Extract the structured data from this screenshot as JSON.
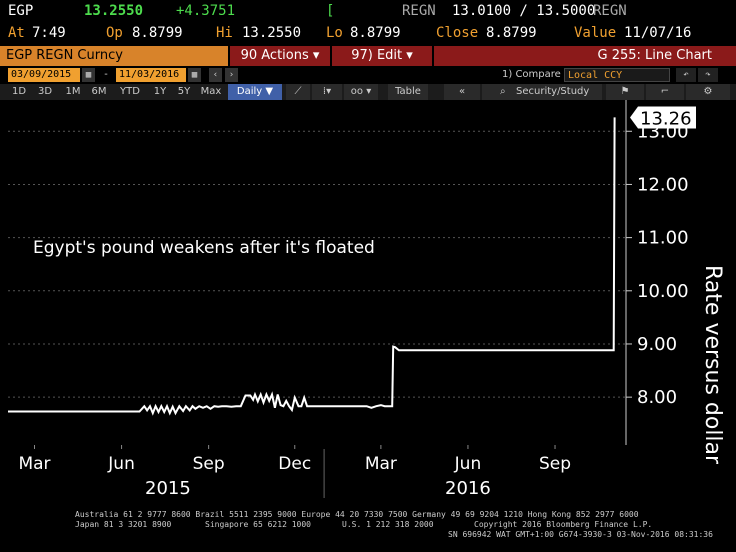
{
  "quote": {
    "ticker": "EGP",
    "last": "13.2550",
    "change": "+4.3751",
    "bar": "[",
    "source_label1": "REGN",
    "bid_ask": "13.0100 / 13.5000",
    "source_label2": "REGN",
    "at_label": "At",
    "time": "7:49",
    "op_label": "Op",
    "open": "8.8799",
    "hi_label": "Hi",
    "high": "13.2550",
    "lo_label": "Lo",
    "low": "8.8799",
    "close_label": "Close",
    "close": "8.8799",
    "value_label": "Value",
    "value_date": "11/07/16"
  },
  "cmdbar": {
    "title": "EGP REGN Curncy",
    "actions_label": "90 Actions ▾",
    "edit_label": "97) Edit ▾",
    "screen_name": "G 255: Line Chart"
  },
  "daterow": {
    "start_date": "03/09/2015",
    "dash": "-",
    "end_date": "11/03/2016",
    "compare_label": "1) Compare",
    "local_ccy": "Local CCY"
  },
  "toolbar": {
    "periods": [
      "1D",
      "3D",
      "1M",
      "6M",
      "YTD",
      "1Y",
      "5Y",
      "Max"
    ],
    "frequency": "Daily ▼",
    "table_label": "Table",
    "collapse_label": "«",
    "security_label": "Security/Study"
  },
  "chart_data": {
    "type": "line",
    "annotation": "Egypt's pound weakens after it's floated",
    "ylabel": "Rate versus dollar",
    "last_value_label": "13.26",
    "ylim": [
      7.1,
      13.4
    ],
    "y_ticks": [
      "8.00",
      "9.00",
      "10.00",
      "11.00",
      "12.00",
      "13.00"
    ],
    "x_ticks": [
      "Mar",
      "Jun",
      "Sep",
      "Dec",
      "Mar",
      "Jun",
      "Sep"
    ],
    "x_tick_months": [
      "2015-03",
      "2015-06",
      "2015-09",
      "2015-12",
      "2016-03",
      "2016-06",
      "2016-09"
    ],
    "years": [
      "2015",
      "2016"
    ],
    "x_range": [
      "2015-02-01",
      "2016-11-15"
    ],
    "series": [
      {
        "x": [
          "2015-02-01",
          "2015-06-20",
          "2015-06-25",
          "2015-06-28",
          "2015-07-01",
          "2015-07-04",
          "2015-07-07",
          "2015-07-10",
          "2015-07-13",
          "2015-07-16",
          "2015-07-19",
          "2015-07-22",
          "2015-07-25",
          "2015-07-28",
          "2015-08-01",
          "2015-08-05",
          "2015-08-08",
          "2015-08-12",
          "2015-08-15",
          "2015-08-18",
          "2015-08-22",
          "2015-08-26",
          "2015-08-30",
          "2015-09-03",
          "2015-09-07",
          "2015-09-11",
          "2015-09-15",
          "2015-09-20",
          "2015-09-25",
          "2015-09-30",
          "2015-10-05",
          "2015-10-10",
          "2015-10-15",
          "2015-10-18",
          "2015-10-20",
          "2015-10-23",
          "2015-10-26",
          "2015-10-29",
          "2015-11-01",
          "2015-11-04",
          "2015-11-07",
          "2015-11-10",
          "2015-11-13",
          "2015-11-16",
          "2015-11-19",
          "2015-11-22",
          "2015-11-25",
          "2015-11-28",
          "2015-12-01",
          "2015-12-05",
          "2015-12-08",
          "2015-12-11",
          "2015-12-14",
          "2015-12-17",
          "2015-12-20",
          "2015-12-25",
          "2016-01-01",
          "2016-01-10",
          "2016-01-20",
          "2016-01-30",
          "2016-02-08",
          "2016-02-15",
          "2016-02-20",
          "2016-02-25",
          "2016-03-01",
          "2016-03-05",
          "2016-03-10",
          "2016-03-13",
          "2016-03-14",
          "2016-03-16",
          "2016-03-20",
          "2016-03-25",
          "2016-04-01",
          "2016-04-15",
          "2016-05-01",
          "2016-05-15",
          "2016-06-01",
          "2016-06-15",
          "2016-07-01",
          "2016-07-15",
          "2016-08-01",
          "2016-08-15",
          "2016-09-01",
          "2016-09-15",
          "2016-10-01",
          "2016-10-15",
          "2016-10-25",
          "2016-11-01",
          "2016-11-02",
          "2016-11-03"
        ],
        "y": [
          7.73,
          7.73,
          7.83,
          7.75,
          7.83,
          7.7,
          7.83,
          7.72,
          7.83,
          7.72,
          7.83,
          7.7,
          7.82,
          7.7,
          7.83,
          7.74,
          7.83,
          7.75,
          7.83,
          7.78,
          7.83,
          7.8,
          7.83,
          7.78,
          7.83,
          7.82,
          7.83,
          7.83,
          7.82,
          7.83,
          7.83,
          8.03,
          8.03,
          7.95,
          8.05,
          7.92,
          8.05,
          7.9,
          8.05,
          7.93,
          8.05,
          7.8,
          8.05,
          7.85,
          7.83,
          7.93,
          7.83,
          7.76,
          7.99,
          7.83,
          7.83,
          7.99,
          7.83,
          7.83,
          7.83,
          7.83,
          7.83,
          7.83,
          7.83,
          7.83,
          7.83,
          7.83,
          7.8,
          7.83,
          7.85,
          7.83,
          7.83,
          7.83,
          8.95,
          8.94,
          8.88,
          8.88,
          8.88,
          8.88,
          8.88,
          8.88,
          8.88,
          8.88,
          8.88,
          8.88,
          8.88,
          8.88,
          8.88,
          8.88,
          8.88,
          8.88,
          8.88,
          8.88,
          8.88,
          13.26
        ]
      }
    ]
  },
  "footer": {
    "line1": "Australia 61 2 9777 8600 Brazil 5511 2395 9000 Europe 44 20 7330 7500 Germany 49 69 9204 1210 Hong Kong 852 2977 6000",
    "line2a": "Japan 81 3 3201 8900",
    "line2b": "Singapore 65 6212 1000",
    "line2c": "U.S. 1 212 318 2000",
    "line2d": "Copyright 2016 Bloomberg Finance L.P.",
    "line3": "SN 696942 WAT  GMT+1:00 G674-3930-3 03-Nov-2016 08:31:36"
  },
  "colors": {
    "amber": "#f0a030",
    "orange_bar": "#d8832a",
    "menu_red": "#8b1a1a",
    "green": "#4ddc4d",
    "line": "#ffffff",
    "grid": "#555555"
  }
}
